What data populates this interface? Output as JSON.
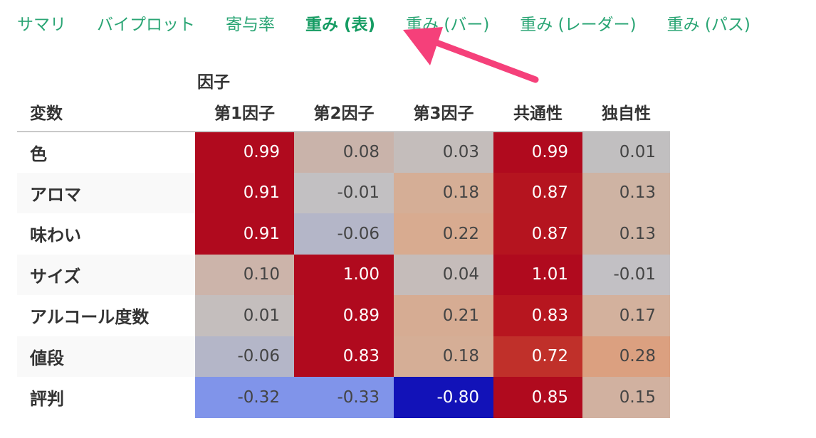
{
  "tabs": [
    {
      "label": "サマリ",
      "active": false
    },
    {
      "label": "バイプロット",
      "active": false
    },
    {
      "label": "寄与率",
      "active": false
    },
    {
      "label": "重み (表)",
      "active": true
    },
    {
      "label": "重み (バー)",
      "active": false
    },
    {
      "label": "重み (レーダー)",
      "active": false
    },
    {
      "label": "重み (パス)",
      "active": false
    }
  ],
  "table": {
    "group_header": "因子",
    "variable_header": "変数",
    "columns": [
      "第1因子",
      "第2因子",
      "第3因子",
      "共通性",
      "独自性"
    ],
    "rows": [
      {
        "label": "色",
        "values": [
          "0.99",
          "0.08",
          "0.03",
          "0.99",
          "0.01"
        ],
        "colors": [
          "#b00a1e",
          "#c9b3aa",
          "#c4bdbb",
          "#b00a1e",
          "#c1bfc0"
        ]
      },
      {
        "label": "アロマ",
        "values": [
          "0.91",
          "-0.01",
          "0.18",
          "0.87",
          "0.13"
        ],
        "colors": [
          "#b00a1e",
          "#c2c0c2",
          "#d5ae96",
          "#b5141f",
          "#ceb3a3"
        ]
      },
      {
        "label": "味わい",
        "values": [
          "0.91",
          "-0.06",
          "0.22",
          "0.87",
          "0.13"
        ],
        "colors": [
          "#b00a1e",
          "#b4b6c8",
          "#d8ab90",
          "#b5141f",
          "#ceb3a3"
        ]
      },
      {
        "label": "サイズ",
        "values": [
          "0.10",
          "1.00",
          "0.04",
          "1.01",
          "-0.01"
        ],
        "colors": [
          "#ccb4aa",
          "#b00a1e",
          "#c5bcba",
          "#b00a1e",
          "#c2c0c4"
        ]
      },
      {
        "label": "アルコール度数",
        "values": [
          "0.01",
          "0.89",
          "0.21",
          "0.83",
          "0.17"
        ],
        "colors": [
          "#c4bebd",
          "#b00a1e",
          "#d6ac93",
          "#b7161f",
          "#d3b19d"
        ]
      },
      {
        "label": "値段",
        "values": [
          "-0.06",
          "0.83",
          "0.18",
          "0.72",
          "0.28"
        ],
        "colors": [
          "#b4b6c8",
          "#b00a1e",
          "#d5ae96",
          "#c0302a",
          "#dba080"
        ]
      },
      {
        "label": "評判",
        "values": [
          "-0.32",
          "-0.33",
          "-0.80",
          "0.85",
          "0.15"
        ],
        "colors": [
          "#8094ea",
          "#8094ea",
          "#1212b8",
          "#b00a1e",
          "#d1b1a0"
        ]
      }
    ],
    "light_text": [
      [
        true,
        false,
        false,
        true,
        false
      ],
      [
        true,
        false,
        false,
        true,
        false
      ],
      [
        true,
        false,
        false,
        true,
        false
      ],
      [
        false,
        true,
        false,
        true,
        false
      ],
      [
        false,
        true,
        false,
        true,
        false
      ],
      [
        false,
        true,
        false,
        true,
        false
      ],
      [
        false,
        false,
        true,
        true,
        false
      ]
    ]
  },
  "annotation": {
    "type": "arrow",
    "color": "#f5407a",
    "icon": "pointer-arrow"
  }
}
